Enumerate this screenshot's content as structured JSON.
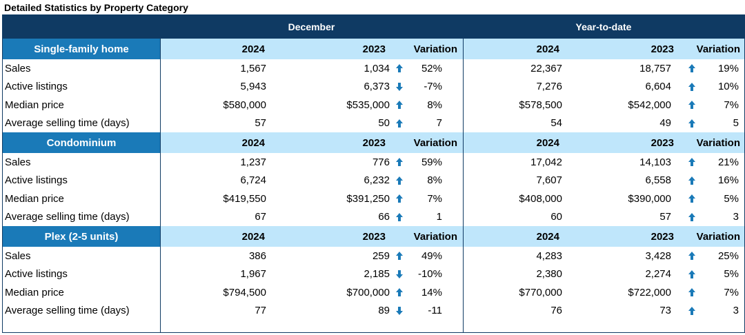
{
  "title": "Detailed Statistics by Property Category",
  "header": {
    "december": "December",
    "ytd": "Year-to-date"
  },
  "colors": {
    "header": "#0f3a63",
    "subheader": "#bfe6fb",
    "category": "#1a7ab8",
    "arrow": "#1a7ab8"
  },
  "sections": [
    {
      "name": "Single-family home",
      "dec_cols": [
        "2024",
        "2023",
        "Variation"
      ],
      "ytd_cols": [
        "2024",
        "2023",
        "Variation"
      ],
      "rows": [
        {
          "label": "Sales",
          "dec_2024": "1,567",
          "dec_2023": "1,034",
          "dec_dir": "up",
          "dec_var": "52%",
          "ytd_2024": "22,367",
          "ytd_2023": "18,757",
          "ytd_dir": "up",
          "ytd_var": "19%"
        },
        {
          "label": "Active listings",
          "dec_2024": "5,943",
          "dec_2023": "6,373",
          "dec_dir": "down",
          "dec_var": "-7%",
          "ytd_2024": "7,276",
          "ytd_2023": "6,604",
          "ytd_dir": "up",
          "ytd_var": "10%"
        },
        {
          "label": "Median price",
          "dec_2024": "$580,000",
          "dec_2023": "$535,000",
          "dec_dir": "up",
          "dec_var": "8%",
          "ytd_2024": "$578,500",
          "ytd_2023": "$542,000",
          "ytd_dir": "up",
          "ytd_var": "7%"
        },
        {
          "label": "Average selling time (days)",
          "dec_2024": "57",
          "dec_2023": "50",
          "dec_dir": "up",
          "dec_var": "7",
          "ytd_2024": "54",
          "ytd_2023": "49",
          "ytd_dir": "up",
          "ytd_var": "5"
        }
      ]
    },
    {
      "name": "Condominium",
      "dec_cols": [
        "2024",
        "2023",
        "Variation"
      ],
      "ytd_cols": [
        "2024",
        "2023",
        "Variation"
      ],
      "rows": [
        {
          "label": "Sales",
          "dec_2024": "1,237",
          "dec_2023": "776",
          "dec_dir": "up",
          "dec_var": "59%",
          "ytd_2024": "17,042",
          "ytd_2023": "14,103",
          "ytd_dir": "up",
          "ytd_var": "21%"
        },
        {
          "label": "Active listings",
          "dec_2024": "6,724",
          "dec_2023": "6,232",
          "dec_dir": "up",
          "dec_var": "8%",
          "ytd_2024": "7,607",
          "ytd_2023": "6,558",
          "ytd_dir": "up",
          "ytd_var": "16%"
        },
        {
          "label": "Median price",
          "dec_2024": "$419,550",
          "dec_2023": "$391,250",
          "dec_dir": "up",
          "dec_var": "7%",
          "ytd_2024": "$408,000",
          "ytd_2023": "$390,000",
          "ytd_dir": "up",
          "ytd_var": "5%"
        },
        {
          "label": "Average selling time (days)",
          "dec_2024": "67",
          "dec_2023": "66",
          "dec_dir": "up",
          "dec_var": "1",
          "ytd_2024": "60",
          "ytd_2023": "57",
          "ytd_dir": "up",
          "ytd_var": "3"
        }
      ]
    },
    {
      "name": "Plex (2-5 units)",
      "dec_cols": [
        "2024",
        "2023",
        "Variation"
      ],
      "ytd_cols": [
        "2024",
        "2023",
        "Variation"
      ],
      "rows": [
        {
          "label": "Sales",
          "dec_2024": "386",
          "dec_2023": "259",
          "dec_dir": "up",
          "dec_var": "49%",
          "ytd_2024": "4,283",
          "ytd_2023": "3,428",
          "ytd_dir": "up",
          "ytd_var": "25%"
        },
        {
          "label": "Active listings",
          "dec_2024": "1,967",
          "dec_2023": "2,185",
          "dec_dir": "down",
          "dec_var": "-10%",
          "ytd_2024": "2,380",
          "ytd_2023": "2,274",
          "ytd_dir": "up",
          "ytd_var": "5%"
        },
        {
          "label": "Median price",
          "dec_2024": "$794,500",
          "dec_2023": "$700,000",
          "dec_dir": "up",
          "dec_var": "14%",
          "ytd_2024": "$770,000",
          "ytd_2023": "$722,000",
          "ytd_dir": "up",
          "ytd_var": "7%"
        },
        {
          "label": "Average selling time (days)",
          "dec_2024": "77",
          "dec_2023": "89",
          "dec_dir": "down",
          "dec_var": "-11",
          "ytd_2024": "76",
          "ytd_2023": "73",
          "ytd_dir": "up",
          "ytd_var": "3"
        }
      ]
    }
  ]
}
